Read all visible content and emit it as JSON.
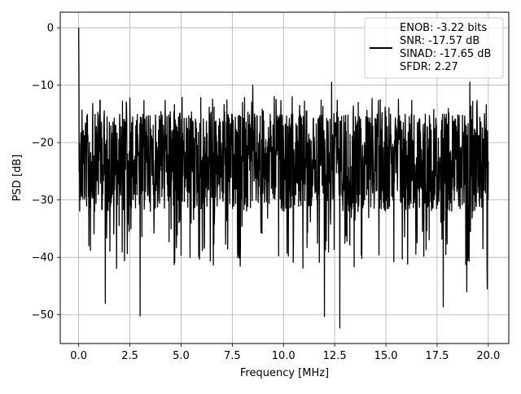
{
  "chart_data": {
    "type": "line",
    "xlabel": "Frequency [MHz]",
    "ylabel": "PSD [dB]",
    "xlim": [
      -0.9,
      21.0
    ],
    "ylim": [
      -55,
      2.7
    ],
    "xticks": [
      0.0,
      2.5,
      5.0,
      7.5,
      10.0,
      12.5,
      15.0,
      17.5,
      20.0
    ],
    "xtick_labels": [
      "0.0",
      "2.5",
      "5.0",
      "7.5",
      "10.0",
      "12.5",
      "15.0",
      "17.5",
      "20.0"
    ],
    "yticks": [
      0,
      -10,
      -20,
      -30,
      -40,
      -50
    ],
    "ytick_labels": [
      "0",
      "−10",
      "−20",
      "−30",
      "−40",
      "−50"
    ],
    "grid": true,
    "legend_position": "top-right",
    "legend": {
      "lines": [
        "ENOB: -3.22 bits",
        "SNR: -17.57 dB",
        "SINAD: -17.65 dB",
        "SFDR: 2.27"
      ]
    },
    "series": [
      {
        "color": "#000000",
        "description": "noise-like PSD trace from 0 to 20 MHz; peak 0 dB at 0 MHz, mostly between about -35 and -12 dB",
        "x_range": [
          0.0,
          20.0
        ],
        "peak": {
          "x": 0.0,
          "y": 0.0
        },
        "deep_notches": [
          {
            "x": 1.3,
            "y": -48.0
          },
          {
            "x": 3.0,
            "y": -50.2
          },
          {
            "x": 12.0,
            "y": -50.3
          },
          {
            "x": 12.75,
            "y": -52.3
          },
          {
            "x": 17.8,
            "y": -48.6
          },
          {
            "x": 18.95,
            "y": -46.0
          },
          {
            "x": 19.95,
            "y": -45.5
          }
        ],
        "upper_peaks": [
          {
            "x": 8.5,
            "y": -10.0
          },
          {
            "x": 12.35,
            "y": -9.5
          },
          {
            "x": 19.1,
            "y": -9.5
          }
        ]
      }
    ]
  }
}
